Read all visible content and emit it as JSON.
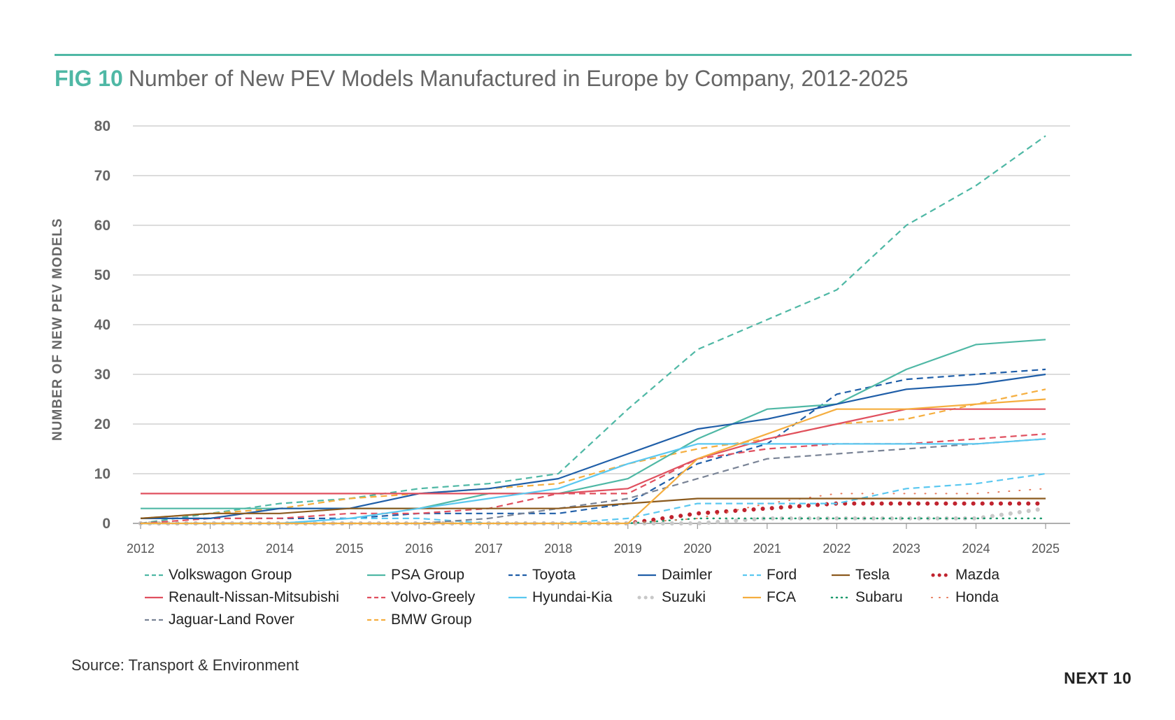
{
  "title": {
    "fig": "FIG 10",
    "text": "Number of New PEV Models Manufactured in Europe by Company, 2012-2025"
  },
  "source": "Source: Transport & Environment",
  "brand": "NEXT 10",
  "chart_data": {
    "type": "line",
    "title": "Number of New PEV Models Manufactured in Europe by Company, 2012-2025",
    "xlabel": "",
    "ylabel": "NUMBER OF NEW PEV MODELS",
    "x": [
      "2012",
      "2013",
      "2014",
      "2015",
      "2016",
      "2017",
      "2018",
      "2019",
      "2020",
      "2021",
      "2022",
      "2023",
      "2024",
      "2025"
    ],
    "ylim": [
      0,
      80
    ],
    "yticks": [
      0,
      10,
      20,
      30,
      40,
      50,
      60,
      70,
      80
    ],
    "grid": true,
    "legend_position": "bottom",
    "series": [
      {
        "name": "Volkswagon Group",
        "color": "#4fb8a5",
        "style": "dashed",
        "values": [
          0,
          2,
          4,
          5,
          7,
          8,
          10,
          23,
          35,
          41,
          47,
          60,
          68,
          78
        ]
      },
      {
        "name": "PSA Group",
        "color": "#4fb8a5",
        "style": "solid",
        "values": [
          3,
          3,
          3,
          3,
          3,
          6,
          6,
          9,
          17,
          23,
          24,
          31,
          36,
          37
        ]
      },
      {
        "name": "Toyota",
        "color": "#1f5ea8",
        "style": "dashed",
        "values": [
          1,
          1,
          1,
          1,
          2,
          2,
          2,
          4,
          12,
          16,
          26,
          29,
          30,
          31
        ]
      },
      {
        "name": "Daimler",
        "color": "#1f5ea8",
        "style": "solid",
        "values": [
          1,
          1,
          3,
          3,
          6,
          7,
          9,
          14,
          19,
          21,
          24,
          27,
          28,
          30
        ]
      },
      {
        "name": "Ford",
        "color": "#5bc8f0",
        "style": "dashed",
        "values": [
          0,
          0,
          0,
          1,
          1,
          0,
          0,
          1,
          4,
          4,
          4,
          7,
          8,
          10
        ]
      },
      {
        "name": "Tesla",
        "color": "#8b5a1e",
        "style": "solid",
        "values": [
          1,
          2,
          2,
          3,
          3,
          3,
          3,
          4,
          5,
          5,
          5,
          5,
          5,
          5
        ]
      },
      {
        "name": "Mazda",
        "color": "#c0232e",
        "style": "dotted-bold",
        "values": [
          0,
          0,
          0,
          0,
          0,
          0,
          0,
          0,
          2,
          3,
          4,
          4,
          4,
          4
        ]
      },
      {
        "name": "Renault-Nissan-Mitsubishi",
        "color": "#e0505f",
        "style": "solid",
        "values": [
          6,
          6,
          6,
          6,
          6,
          6,
          6,
          7,
          13,
          17,
          20,
          23,
          23,
          23
        ]
      },
      {
        "name": "Volvo-Greely",
        "color": "#e0505f",
        "style": "dashed",
        "values": [
          0,
          1,
          1,
          2,
          2,
          3,
          6,
          6,
          13,
          15,
          16,
          16,
          17,
          18
        ]
      },
      {
        "name": "Hyundai-Kia",
        "color": "#5bc8f0",
        "style": "solid",
        "values": [
          0,
          0,
          0,
          1,
          3,
          5,
          7,
          12,
          16,
          16,
          16,
          16,
          16,
          17
        ]
      },
      {
        "name": "Suzuki",
        "color": "#c8c8c8",
        "style": "dotted-bold",
        "values": [
          0,
          0,
          0,
          0,
          0,
          0,
          0,
          0,
          0,
          1,
          1,
          1,
          1,
          3
        ]
      },
      {
        "name": "FCA",
        "color": "#f5ae3f",
        "style": "solid",
        "values": [
          0,
          0,
          0,
          0,
          0,
          0,
          0,
          0,
          13,
          18,
          23,
          23,
          24,
          25
        ]
      },
      {
        "name": "Subaru",
        "color": "#1a9a6c",
        "style": "dotted",
        "values": [
          0,
          0,
          0,
          0,
          0,
          0,
          0,
          0,
          1,
          1,
          1,
          1,
          1,
          1
        ]
      },
      {
        "name": "Honda",
        "color": "#e8795a",
        "style": "dotted-sparse",
        "values": [
          0,
          0,
          0,
          0,
          0,
          0,
          0,
          0,
          1,
          4,
          6,
          6,
          6,
          7
        ]
      },
      {
        "name": "Jaguar-Land Rover",
        "color": "#7a8496",
        "style": "dashed",
        "values": [
          0,
          0,
          0,
          0,
          0,
          1,
          3,
          5,
          9,
          13,
          14,
          15,
          16,
          17
        ]
      },
      {
        "name": "BMW Group",
        "color": "#f5ae3f",
        "style": "dashed",
        "values": [
          1,
          2,
          3,
          5,
          6,
          7,
          8,
          12,
          15,
          17,
          20,
          21,
          24,
          27
        ]
      }
    ]
  }
}
